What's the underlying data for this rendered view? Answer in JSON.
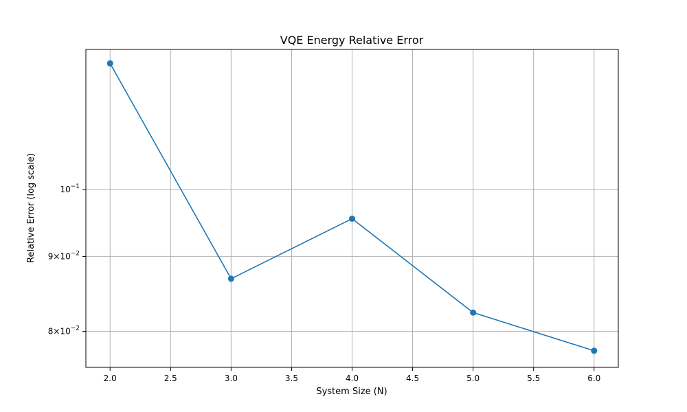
{
  "chart_data": {
    "type": "line",
    "title": "VQE Energy Relative Error",
    "xlabel": "System Size (N)",
    "ylabel": "Relative Error (log scale)",
    "xlim": [
      1.8,
      6.2
    ],
    "ylim": [
      0.0756,
      0.1246
    ],
    "yscale": "log",
    "grid": true,
    "x": [
      2,
      3,
      4,
      5,
      6
    ],
    "series": [
      {
        "values": [
          0.1219,
          0.0869,
          0.0955,
          0.0824,
          0.0776
        ],
        "color": "#1f77b4"
      }
    ],
    "xticks": [
      {
        "value": 2.0,
        "label": "2.0"
      },
      {
        "value": 2.5,
        "label": "2.5"
      },
      {
        "value": 3.0,
        "label": "3.0"
      },
      {
        "value": 3.5,
        "label": "3.5"
      },
      {
        "value": 4.0,
        "label": "4.0"
      },
      {
        "value": 4.5,
        "label": "4.5"
      },
      {
        "value": 5.0,
        "label": "5.0"
      },
      {
        "value": 5.5,
        "label": "5.5"
      },
      {
        "value": 6.0,
        "label": "6.0"
      }
    ],
    "yticks": [
      {
        "value": 0.1,
        "mantissa": "",
        "exponent": "−1"
      },
      {
        "value": 0.09,
        "mantissa": "9",
        "exponent": "−2"
      },
      {
        "value": 0.08,
        "mantissa": "8",
        "exponent": "−2"
      }
    ]
  }
}
